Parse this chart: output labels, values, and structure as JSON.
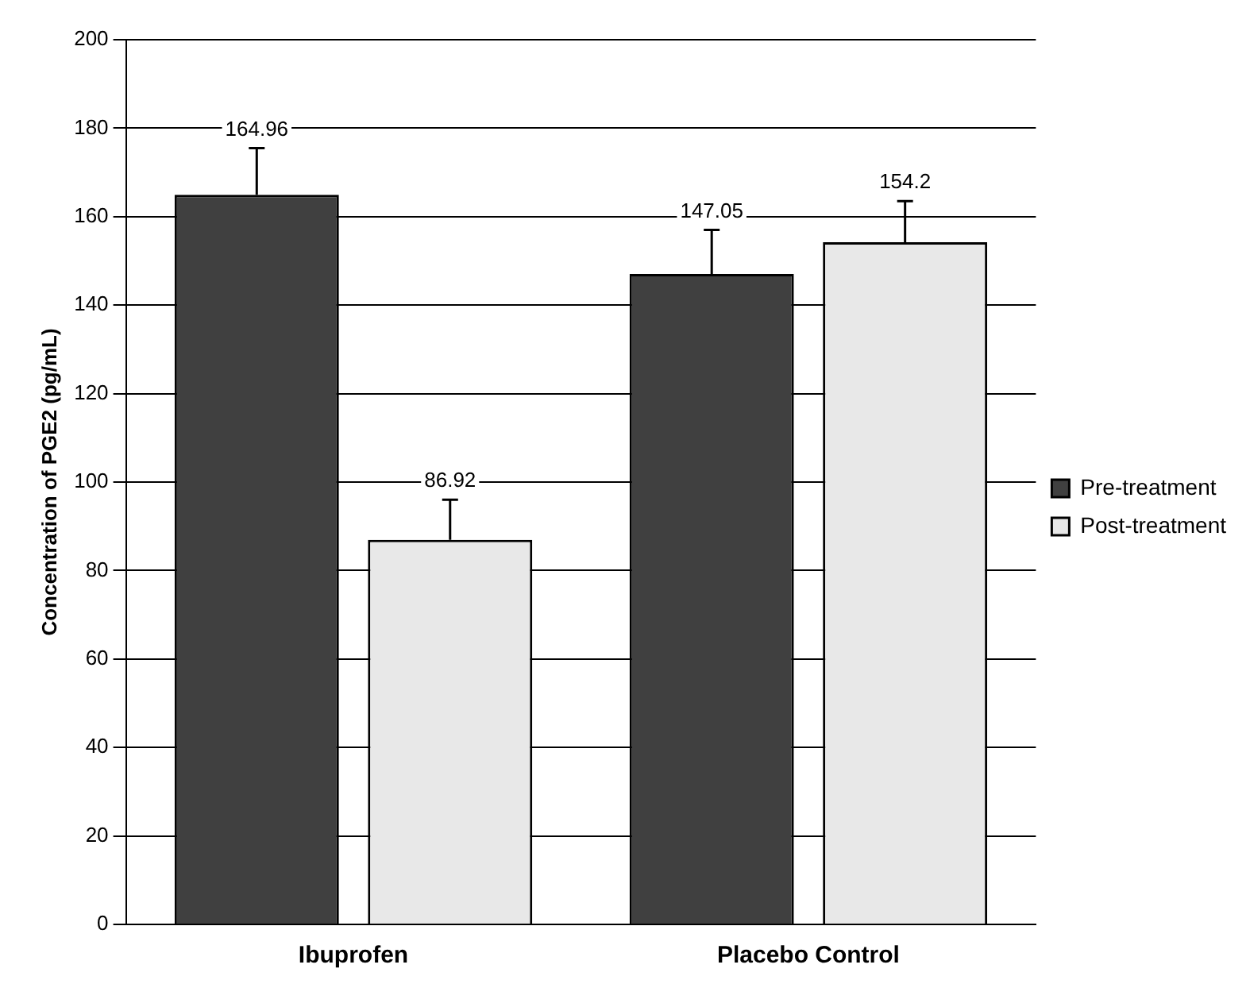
{
  "chart_data": {
    "type": "bar",
    "ylabel": "Concentration of PGE2 (pg/mL)",
    "categories": [
      "Ibuprofen",
      "Placebo Control"
    ],
    "series": [
      {
        "name": "Pre-treatment",
        "color": "#404040",
        "values": [
          164.96,
          147.05
        ],
        "errors": [
          [
            164.96,
            175.5
          ],
          [
            147.05,
            157
          ]
        ]
      },
      {
        "name": "Post-treatment",
        "color": "#e8e8e8",
        "values": [
          86.92,
          154.2
        ],
        "errors": [
          [
            86.92,
            96
          ],
          [
            154.2,
            163.5
          ]
        ]
      }
    ],
    "ylim": [
      0,
      200
    ],
    "yticks": [
      0,
      20,
      40,
      60,
      80,
      100,
      120,
      140,
      160,
      180,
      200
    ],
    "grid": "y",
    "legend": "right",
    "data_labels": true
  }
}
